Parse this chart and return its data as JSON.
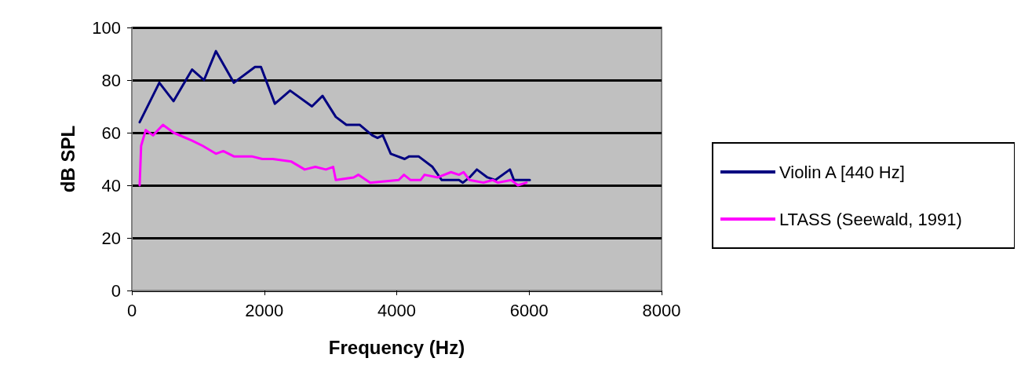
{
  "chart_data": {
    "type": "line",
    "xlabel": "Frequency (Hz)",
    "ylabel": "dB SPL",
    "xlim": [
      0,
      8000
    ],
    "xticks": [
      0,
      2000,
      4000,
      6000,
      8000
    ],
    "ylim": [
      0,
      100
    ],
    "yticks": [
      0,
      20,
      40,
      60,
      80,
      100
    ],
    "grid": "y",
    "legend": "right",
    "marker": "none",
    "line_style": "solid",
    "series": [
      {
        "name": "Violin A [440 Hz]",
        "color": "#000080",
        "x": [
          118,
          415,
          630,
          910,
          1090,
          1270,
          1540,
          1860,
          1950,
          2160,
          2390,
          2720,
          2880,
          3080,
          3240,
          3440,
          3630,
          3710,
          3790,
          3910,
          4120,
          4190,
          4330,
          4540,
          4680,
          4940,
          5000,
          5100,
          5210,
          5370,
          5490,
          5710,
          5770,
          6010
        ],
        "values": [
          64,
          79,
          72,
          84,
          80,
          91,
          79,
          85,
          85,
          71,
          76,
          70,
          74,
          66,
          63,
          63,
          59,
          58,
          59,
          52,
          50,
          51,
          51,
          47,
          42,
          42,
          41,
          43,
          46,
          43,
          42,
          46,
          42,
          42
        ]
      },
      {
        "name": "LTASS (Seewald, 1991)",
        "color": "#ff00ff",
        "x": [
          118,
          140,
          210,
          320,
          470,
          630,
          910,
          1070,
          1270,
          1380,
          1540,
          1810,
          1970,
          2130,
          2410,
          2610,
          2770,
          2930,
          3040,
          3080,
          3350,
          3420,
          3600,
          4030,
          4110,
          4210,
          4360,
          4420,
          4620,
          4820,
          4940,
          5010,
          5100,
          5310,
          5450,
          5530,
          5730,
          5830,
          5960
        ],
        "values": [
          40,
          55,
          61,
          59,
          63,
          60,
          57,
          55,
          52,
          53,
          51,
          51,
          50,
          50,
          49,
          46,
          47,
          46,
          47,
          42,
          43,
          44,
          41,
          42,
          44,
          42,
          42,
          44,
          43,
          45,
          44,
          45,
          42,
          41,
          42,
          41,
          42,
          40,
          41
        ]
      }
    ]
  }
}
